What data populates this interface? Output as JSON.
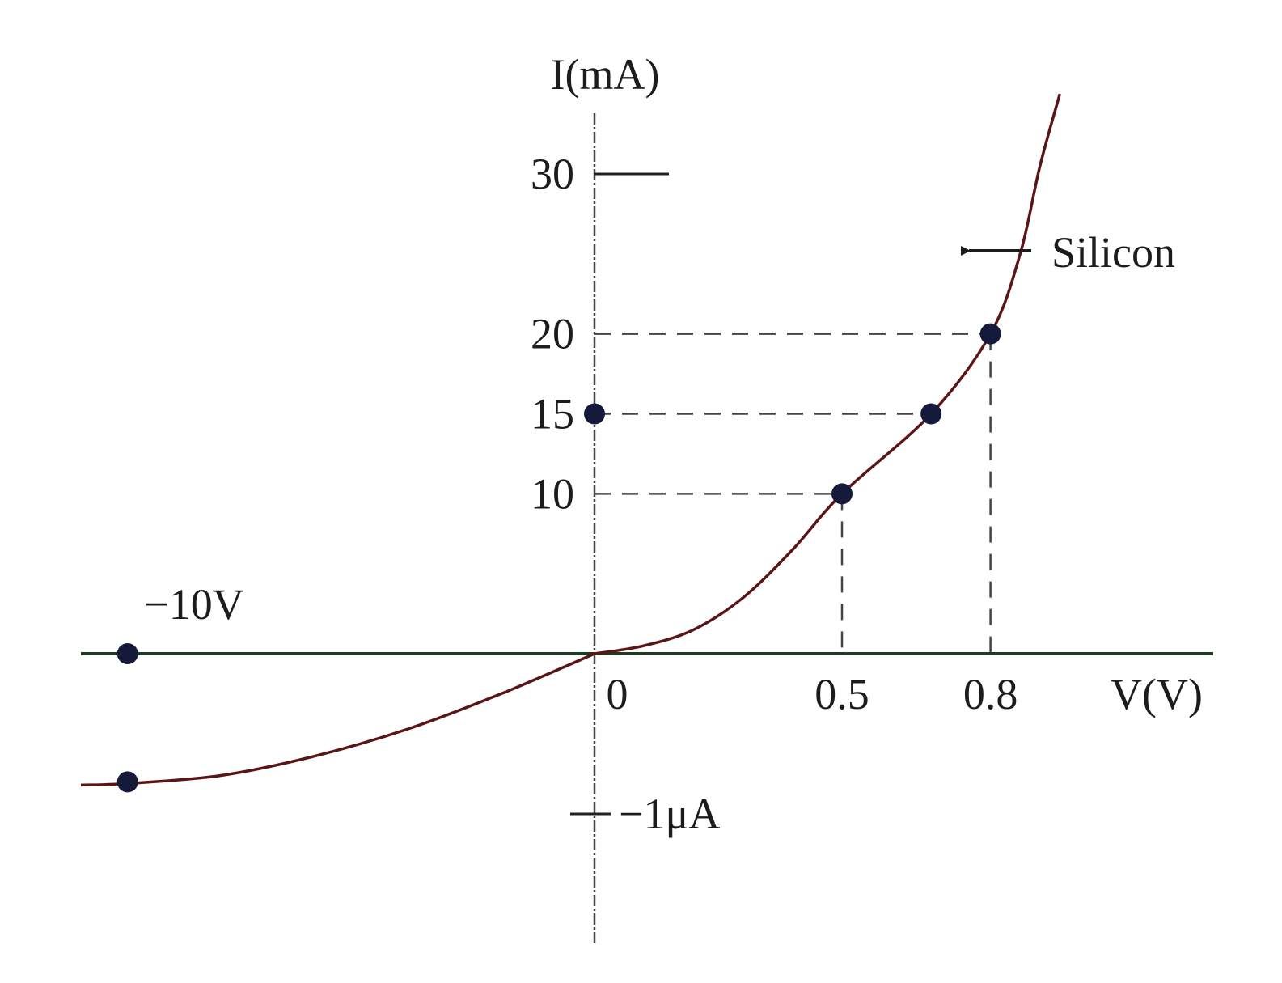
{
  "chart_data": {
    "type": "line",
    "title": "",
    "xlabel": "V(V)",
    "ylabel": "I(mA)",
    "x_ticks": [
      {
        "value": 0,
        "label": "0"
      },
      {
        "value": 0.5,
        "label": "0.5"
      },
      {
        "value": 0.8,
        "label": "0.8"
      }
    ],
    "y_ticks": [
      {
        "value": 10,
        "label": "10"
      },
      {
        "value": 15,
        "label": "15"
      },
      {
        "value": 20,
        "label": "20"
      },
      {
        "value": 30,
        "label": "30"
      }
    ],
    "series": [
      {
        "name": "Silicon",
        "forward_points": [
          {
            "x": 0,
            "y": 0
          },
          {
            "x": 0.1,
            "y": 0.5
          },
          {
            "x": 0.2,
            "y": 1.5
          },
          {
            "x": 0.3,
            "y": 3.5
          },
          {
            "x": 0.4,
            "y": 6.5
          },
          {
            "x": 0.5,
            "y": 10
          },
          {
            "x": 0.68,
            "y": 15
          },
          {
            "x": 0.8,
            "y": 20
          },
          {
            "x": 0.86,
            "y": 25
          },
          {
            "x": 0.9,
            "y": 30.5
          },
          {
            "x": 0.94,
            "y": 35
          }
        ],
        "marked_points": [
          {
            "x": 0.5,
            "y": 10
          },
          {
            "x": 0.68,
            "y": 15
          },
          {
            "x": 0.8,
            "y": 20
          }
        ],
        "reverse_curve": {
          "voltages_V": [
            0,
            -2,
            -4,
            -6,
            -8,
            -10,
            -11
          ],
          "currents_uA": [
            0,
            -0.25,
            -0.47,
            -0.64,
            -0.76,
            -0.81,
            -0.82
          ]
        },
        "reverse_marked_point": {
          "x": -10,
          "y_uA": -0.8
        }
      }
    ],
    "axis_points": [
      {
        "axis": "y",
        "x": 0,
        "y": 15
      },
      {
        "axis": "x",
        "x": -10,
        "y": 0
      }
    ],
    "guide_lines": [
      {
        "x": 0.5,
        "y": 10
      },
      {
        "x": 0.68,
        "y": 15
      },
      {
        "x": 0.8,
        "y": 20
      }
    ],
    "annotations": {
      "series_label": "Silicon",
      "reverse_voltage": "−10V",
      "reverse_current": "−1μA"
    },
    "x_range_forward": [
      0,
      1.25
    ],
    "x_range_reverse": [
      -11,
      0
    ],
    "y_range_mA": [
      0,
      35
    ],
    "y_range_reverse_uA": [
      -1.45,
      0
    ],
    "grid": false,
    "legend": "none"
  },
  "colors": {
    "axis_horizontal": "#1e3a22",
    "axis_vertical": "#444444",
    "curve": "#5a1616",
    "marker": "#151a3a",
    "guide": "#444444",
    "text": "#1c1c1c"
  }
}
